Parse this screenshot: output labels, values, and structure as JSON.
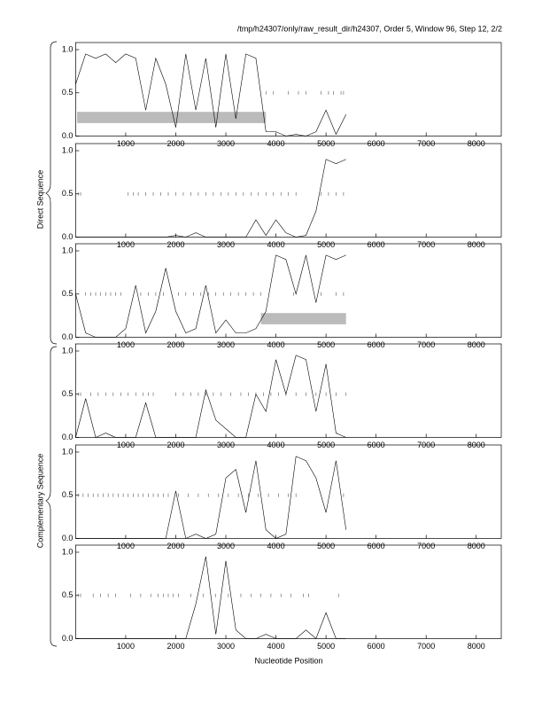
{
  "header": "/tmp/h24307/only/raw_result_dir/h24307, Order 5, Window 96, Step 12, 2/2",
  "x_label": "Nucleotide Position",
  "group_labels": [
    "Direct Sequence",
    "Complementary Sequence"
  ],
  "chart_data": [
    {
      "type": "line",
      "x": [
        0,
        200,
        400,
        600,
        800,
        1000,
        1200,
        1400,
        1600,
        1800,
        2000,
        2200,
        2400,
        2600,
        2800,
        3000,
        3200,
        3400,
        3600,
        3800,
        4000,
        4200,
        4400,
        4600,
        4800,
        5000,
        5200,
        5400
      ],
      "series": [
        {
          "color": "#000000",
          "values": [
            0.6,
            0.95,
            0.9,
            0.95,
            0.85,
            0.95,
            0.9,
            0.3,
            0.9,
            0.6,
            0.1,
            0.95,
            0.3,
            0.9,
            0.1,
            0.95,
            0.2,
            0.95,
            0.9,
            0.05,
            0.05,
            0,
            0.02,
            0,
            0.05,
            0.3,
            0.02,
            0.25
          ]
        }
      ],
      "highlight": {
        "start": 30,
        "end": 3800,
        "color": "#bbbbbb"
      },
      "orf_marks": [
        3800,
        3950,
        4250,
        4450,
        4600,
        4900,
        5050,
        5150,
        5300,
        5350
      ],
      "xlim": [
        0,
        8500
      ],
      "ylim": [
        0,
        1
      ],
      "xticks": [
        1000,
        2000,
        3000,
        4000,
        5000,
        6000,
        7000,
        8000
      ],
      "yticks": [
        {
          "value": 0,
          "label": "0.0"
        },
        {
          "value": 0.5,
          "label": "0.5"
        },
        {
          "value": 1,
          "label": "1.0"
        }
      ]
    },
    {
      "type": "line",
      "x": [
        0,
        200,
        400,
        600,
        800,
        1000,
        1200,
        1400,
        1600,
        1800,
        2000,
        2200,
        2400,
        2600,
        2800,
        3000,
        3200,
        3400,
        3600,
        3800,
        4000,
        4200,
        4400,
        4600,
        4800,
        5000,
        5200,
        5400
      ],
      "series": [
        {
          "color": "#000000",
          "values": [
            0,
            0,
            0,
            0,
            0,
            0,
            0,
            0,
            0,
            0,
            0.02,
            0,
            0.05,
            0,
            0,
            0,
            0,
            0,
            0.2,
            0.02,
            0.2,
            0.05,
            0,
            0.02,
            0.3,
            0.9,
            0.85,
            0.9
          ]
        }
      ],
      "orf_marks": [
        50,
        100,
        1050,
        1150,
        1250,
        1400,
        1550,
        1700,
        1850,
        2000,
        2150,
        2300,
        2450,
        2600,
        2750,
        2900,
        3050,
        3200,
        3350,
        3500,
        3650,
        3800,
        3950,
        4100,
        4250,
        4400,
        4900,
        5050,
        5200,
        5350
      ],
      "xlim": [
        0,
        8500
      ],
      "ylim": [
        0,
        1
      ],
      "xticks": [
        1000,
        2000,
        3000,
        4000,
        5000,
        6000,
        7000,
        8000
      ],
      "yticks": [
        {
          "value": 0,
          "label": "0.0"
        },
        {
          "value": 0.5,
          "label": "0.5"
        },
        {
          "value": 1,
          "label": "1.0"
        }
      ]
    },
    {
      "type": "line",
      "x": [
        0,
        200,
        400,
        600,
        800,
        1000,
        1200,
        1400,
        1600,
        1800,
        2000,
        2200,
        2400,
        2600,
        2800,
        3000,
        3200,
        3400,
        3600,
        3800,
        4000,
        4200,
        4400,
        4600,
        4800,
        5000,
        5200,
        5400
      ],
      "series": [
        {
          "color": "#000000",
          "values": [
            0.5,
            0.05,
            0,
            0,
            0,
            0.1,
            0.6,
            0.05,
            0.3,
            0.8,
            0.3,
            0.05,
            0.1,
            0.6,
            0.05,
            0.2,
            0.05,
            0.05,
            0.1,
            0.3,
            0.95,
            0.9,
            0.5,
            0.95,
            0.4,
            0.95,
            0.9,
            0.95
          ]
        }
      ],
      "highlight": {
        "start": 3700,
        "end": 5400,
        "color": "#bbbbbb"
      },
      "orf_marks": [
        200,
        300,
        400,
        500,
        600,
        700,
        800,
        900,
        1300,
        1450,
        1600,
        1750,
        2050,
        2200,
        2350,
        2500,
        2650,
        2800,
        2950,
        3100,
        3250,
        3400,
        3550,
        3700,
        4350,
        4900,
        5200,
        5350
      ],
      "xlim": [
        0,
        8500
      ],
      "ylim": [
        0,
        1
      ],
      "xticks": [
        1000,
        2000,
        3000,
        4000,
        5000,
        6000,
        7000,
        8000
      ],
      "yticks": [
        {
          "value": 0,
          "label": "0.0"
        },
        {
          "value": 0.5,
          "label": "0.5"
        },
        {
          "value": 1,
          "label": "1.0"
        }
      ]
    },
    {
      "type": "line",
      "x": [
        0,
        200,
        400,
        600,
        800,
        1000,
        1200,
        1400,
        1600,
        1800,
        2000,
        2200,
        2400,
        2600,
        2800,
        3000,
        3200,
        3400,
        3600,
        3800,
        4000,
        4200,
        4400,
        4600,
        4800,
        5000,
        5200,
        5400
      ],
      "series": [
        {
          "color": "#000000",
          "values": [
            0,
            0.45,
            0,
            0.05,
            0,
            0,
            0,
            0.4,
            0,
            0,
            0,
            0,
            0,
            0.55,
            0.2,
            0.1,
            0,
            0,
            0.5,
            0.3,
            0.9,
            0.5,
            0.95,
            0.9,
            0.3,
            0.85,
            0.05,
            0
          ]
        }
      ],
      "orf_marks": [
        50,
        100,
        300,
        450,
        600,
        750,
        900,
        1050,
        1200,
        1350,
        1450,
        1550,
        2000,
        2150,
        2300,
        2450,
        2600,
        2750,
        2900,
        3100,
        3300,
        3450,
        3600,
        3750,
        3900,
        4050,
        4200,
        4400,
        4600,
        4800,
        5000,
        5200,
        5400
      ],
      "xlim": [
        0,
        8500
      ],
      "ylim": [
        0,
        1
      ],
      "xticks": [
        1000,
        2000,
        3000,
        4000,
        5000,
        6000,
        7000,
        8000
      ],
      "yticks": [
        {
          "value": 0,
          "label": "0.0"
        },
        {
          "value": 0.5,
          "label": "0.5"
        },
        {
          "value": 1,
          "label": "1.0"
        }
      ]
    },
    {
      "type": "line",
      "x": [
        0,
        200,
        400,
        600,
        800,
        1000,
        1200,
        1400,
        1600,
        1800,
        2000,
        2200,
        2400,
        2600,
        2800,
        3000,
        3200,
        3400,
        3600,
        3800,
        4000,
        4200,
        4400,
        4600,
        4800,
        5000,
        5200,
        5400
      ],
      "series": [
        {
          "color": "#000000",
          "values": [
            0,
            0,
            0,
            0,
            0,
            0,
            0,
            0,
            0,
            0,
            0.55,
            0,
            0.05,
            0,
            0.05,
            0.7,
            0.8,
            0.3,
            0.9,
            0.1,
            0,
            0.05,
            0.95,
            0.9,
            0.7,
            0.3,
            0.9,
            0.1
          ]
        }
      ],
      "orf_marks": [
        50,
        150,
        250,
        350,
        450,
        550,
        650,
        750,
        850,
        950,
        1050,
        1150,
        1250,
        1350,
        1450,
        1550,
        1650,
        1750,
        1850,
        2050,
        2250,
        2450,
        2650,
        2850,
        3050,
        3250,
        3450,
        3650,
        3850,
        4050,
        4250,
        4400,
        5350
      ],
      "xlim": [
        0,
        8500
      ],
      "ylim": [
        0,
        1
      ],
      "xticks": [
        1000,
        2000,
        3000,
        4000,
        5000,
        6000,
        7000,
        8000
      ],
      "yticks": [
        {
          "value": 0,
          "label": "0.0"
        },
        {
          "value": 0.5,
          "label": "0.5"
        },
        {
          "value": 1,
          "label": "1.0"
        }
      ]
    },
    {
      "type": "line",
      "x": [
        0,
        200,
        400,
        600,
        800,
        1000,
        1200,
        1400,
        1600,
        1800,
        2000,
        2200,
        2400,
        2600,
        2800,
        3000,
        3200,
        3400,
        3600,
        3800,
        4000,
        4200,
        4400,
        4600,
        4800,
        5000,
        5200,
        5400
      ],
      "series": [
        {
          "color": "#000000",
          "values": [
            0,
            0,
            0,
            0,
            0,
            0,
            0,
            0,
            0,
            0,
            0,
            0,
            0.4,
            0.95,
            0.05,
            0.9,
            0.1,
            0,
            0,
            0.05,
            0,
            0,
            0,
            0.1,
            0,
            0.3,
            0,
            0
          ]
        }
      ],
      "orf_marks": [
        50,
        100,
        350,
        500,
        650,
        800,
        1100,
        1300,
        1500,
        1650,
        1750,
        1850,
        1950,
        2050,
        2300,
        2550,
        2800,
        3050,
        3300,
        3500,
        3700,
        3900,
        4100,
        4300,
        4550,
        4650,
        5250
      ],
      "xlim": [
        0,
        8500
      ],
      "ylim": [
        0,
        1
      ],
      "xticks": [
        1000,
        2000,
        3000,
        4000,
        5000,
        6000,
        7000,
        8000
      ],
      "yticks": [
        {
          "value": 0,
          "label": "0.0"
        },
        {
          "value": 0.5,
          "label": "0.5"
        },
        {
          "value": 1,
          "label": "1.0"
        }
      ]
    }
  ]
}
